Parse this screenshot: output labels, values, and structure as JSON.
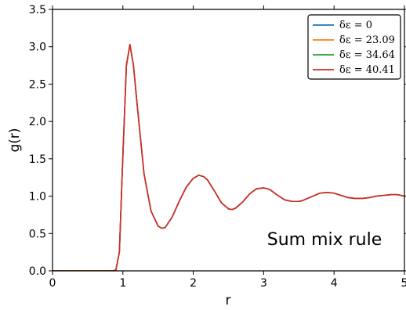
{
  "chart_data": {
    "type": "line",
    "title": "",
    "xlabel": "r",
    "ylabel": "g(r)",
    "xlim": [
      0,
      5
    ],
    "ylim": [
      0,
      3.5
    ],
    "xticks": [
      "0",
      "1",
      "2",
      "3",
      "4",
      "5"
    ],
    "yticks": [
      "0.0",
      "0.5",
      "1.0",
      "1.5",
      "2.0",
      "2.5",
      "3.0",
      "3.5"
    ],
    "grid": false,
    "legend_position": "top-right",
    "annotation": "Sum mix rule",
    "colors": [
      "#1f77b4",
      "#ff7f0e",
      "#2ca02c",
      "#d62728"
    ],
    "x": [
      0.0,
      0.5,
      0.85,
      0.9,
      0.95,
      1.0,
      1.05,
      1.1,
      1.15,
      1.2,
      1.3,
      1.4,
      1.5,
      1.55,
      1.6,
      1.7,
      1.8,
      1.9,
      2.0,
      2.08,
      2.15,
      2.2,
      2.3,
      2.4,
      2.5,
      2.55,
      2.6,
      2.7,
      2.8,
      2.9,
      3.0,
      3.05,
      3.1,
      3.2,
      3.3,
      3.4,
      3.5,
      3.55,
      3.6,
      3.7,
      3.8,
      3.9,
      4.0,
      4.1,
      4.2,
      4.3,
      4.4,
      4.5,
      4.6,
      4.7,
      4.8,
      4.9,
      5.0
    ],
    "series": [
      {
        "name": "δε = 0",
        "values": [
          0.0,
          0.0,
          0.0,
          0.01,
          0.25,
          1.55,
          2.75,
          3.03,
          2.75,
          2.25,
          1.3,
          0.8,
          0.6,
          0.57,
          0.58,
          0.72,
          0.93,
          1.12,
          1.24,
          1.28,
          1.26,
          1.22,
          1.07,
          0.91,
          0.83,
          0.82,
          0.84,
          0.92,
          1.03,
          1.1,
          1.11,
          1.1,
          1.08,
          1.01,
          0.95,
          0.93,
          0.93,
          0.94,
          0.96,
          1.0,
          1.04,
          1.05,
          1.04,
          1.01,
          0.98,
          0.97,
          0.97,
          0.98,
          1.0,
          1.01,
          1.02,
          1.02,
          1.0
        ]
      },
      {
        "name": "δε = 23.09",
        "values": [
          0.0,
          0.0,
          0.0,
          0.01,
          0.25,
          1.55,
          2.75,
          3.03,
          2.75,
          2.25,
          1.3,
          0.8,
          0.6,
          0.57,
          0.58,
          0.72,
          0.93,
          1.12,
          1.24,
          1.28,
          1.26,
          1.22,
          1.07,
          0.91,
          0.83,
          0.82,
          0.84,
          0.92,
          1.03,
          1.1,
          1.11,
          1.1,
          1.08,
          1.01,
          0.95,
          0.93,
          0.93,
          0.94,
          0.96,
          1.0,
          1.04,
          1.05,
          1.04,
          1.01,
          0.98,
          0.97,
          0.97,
          0.98,
          1.0,
          1.01,
          1.02,
          1.02,
          1.0
        ]
      },
      {
        "name": "δε = 34.64",
        "values": [
          0.0,
          0.0,
          0.0,
          0.01,
          0.25,
          1.55,
          2.75,
          3.03,
          2.75,
          2.25,
          1.3,
          0.8,
          0.6,
          0.57,
          0.58,
          0.72,
          0.93,
          1.12,
          1.24,
          1.28,
          1.26,
          1.22,
          1.07,
          0.91,
          0.83,
          0.82,
          0.84,
          0.92,
          1.03,
          1.1,
          1.11,
          1.1,
          1.08,
          1.01,
          0.95,
          0.93,
          0.93,
          0.94,
          0.96,
          1.0,
          1.04,
          1.05,
          1.04,
          1.01,
          0.98,
          0.97,
          0.97,
          0.98,
          1.0,
          1.01,
          1.02,
          1.02,
          1.0
        ]
      },
      {
        "name": "δε = 40.41",
        "values": [
          0.0,
          0.0,
          0.0,
          0.01,
          0.25,
          1.55,
          2.75,
          3.03,
          2.75,
          2.25,
          1.3,
          0.8,
          0.6,
          0.57,
          0.58,
          0.72,
          0.93,
          1.12,
          1.24,
          1.28,
          1.26,
          1.22,
          1.07,
          0.91,
          0.83,
          0.82,
          0.84,
          0.92,
          1.03,
          1.1,
          1.11,
          1.1,
          1.08,
          1.01,
          0.95,
          0.93,
          0.93,
          0.94,
          0.96,
          1.0,
          1.04,
          1.05,
          1.04,
          1.01,
          0.98,
          0.97,
          0.97,
          0.98,
          1.0,
          1.01,
          1.02,
          1.02,
          1.0
        ]
      }
    ]
  }
}
